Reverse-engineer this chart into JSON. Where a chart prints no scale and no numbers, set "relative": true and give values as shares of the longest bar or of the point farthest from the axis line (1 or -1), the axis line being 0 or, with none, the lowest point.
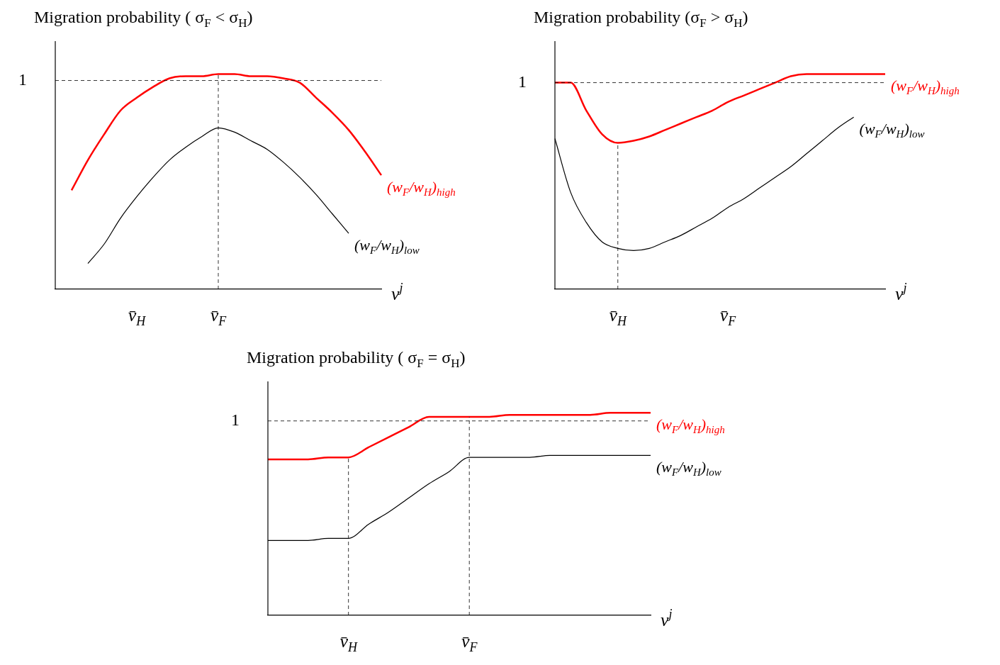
{
  "chart_data": [
    {
      "type": "line",
      "title": "Migration probability ( σ$_{F}$ < σ$_{H}$)",
      "relative": true,
      "xlabel": "v$^{j}$",
      "categories": [
        null,
        null,
        null,
        null,
        null,
        "v̄$_{H}$",
        null,
        null,
        null,
        null,
        "v̄$_{F}$",
        null,
        null,
        null,
        null,
        null,
        null,
        null,
        null,
        null,
        null
      ],
      "series": [
        {
          "name": "(w$_{F}$/w$_{H}$)$_{high}$",
          "color": "#ff0000",
          "values": [
            null,
            0.46,
            0.6,
            0.72,
            0.83,
            0.89,
            0.94,
            0.98,
            0.99,
            0.99,
            1,
            1,
            0.99,
            0.99,
            0.98,
            0.96,
            0.89,
            0.82,
            0.74,
            0.64,
            0.53
          ]
        },
        {
          "name": "(w$_{F}$/w$_{H}$)$_{low}$",
          "color": "#000000",
          "values": [
            null,
            null,
            0.12,
            0.21,
            0.33,
            0.43,
            0.52,
            0.6,
            0.66,
            0.71,
            0.75,
            0.73,
            0.69,
            0.65,
            0.59,
            0.52,
            0.44,
            0.35,
            0.26,
            null,
            null
          ]
        }
      ],
      "ref_lines": [
        {
          "axis": "y",
          "value": 0.97,
          "label": "1",
          "line_style": "dashed"
        },
        {
          "axis": "x",
          "value": "v̄$_{F}$",
          "line_style": "dashed"
        }
      ]
    },
    {
      "type": "line",
      "title": "Migration probability (σ$_{F}$ > σ$_{H}$)",
      "relative": true,
      "xlabel": "v$^{j}$",
      "categories": [
        null,
        null,
        null,
        null,
        "v̄$_{H}$",
        null,
        null,
        null,
        null,
        null,
        null,
        "v̄$_{F}$",
        null,
        null,
        null,
        null,
        null,
        null,
        null,
        null,
        null,
        null
      ],
      "series": [
        {
          "name": "(w$_{F}$/w$_{H}$)$_{high}$",
          "color": "#ff0000",
          "values": [
            0.96,
            0.96,
            0.83,
            0.72,
            0.68,
            0.69,
            0.71,
            0.74,
            0.77,
            0.8,
            0.83,
            0.87,
            0.9,
            0.93,
            0.96,
            0.99,
            1,
            1,
            1,
            1,
            1,
            1
          ]
        },
        {
          "name": "(w$_{F}$/w$_{H}$)$_{low}$",
          "color": "#000000",
          "values": [
            0.7,
            0.45,
            0.31,
            0.22,
            0.19,
            0.18,
            0.19,
            0.22,
            0.25,
            0.29,
            0.33,
            0.38,
            0.42,
            0.47,
            0.52,
            0.57,
            0.63,
            0.69,
            0.75,
            0.8,
            null,
            null
          ]
        }
      ],
      "ref_lines": [
        {
          "axis": "y",
          "value": 0.96,
          "label": "1",
          "line_style": "dashed"
        },
        {
          "axis": "x",
          "value": "v̄$_{H}$",
          "line_style": "dashed"
        }
      ]
    },
    {
      "type": "line",
      "title": "Migration probability ( σ$_{F}$ = σ$_{H}$)",
      "relative": true,
      "xlabel": "v$^{j}$",
      "categories": [
        null,
        null,
        null,
        null,
        "v̄$_{H}$",
        null,
        null,
        null,
        null,
        null,
        "v̄$_{F}$",
        null,
        null,
        null,
        null,
        null,
        null,
        null,
        null,
        null
      ],
      "series": [
        {
          "name": "(w$_{F}$/w$_{H}$)$_{high}$",
          "color": "#ff0000",
          "values": [
            0.77,
            0.77,
            0.77,
            0.78,
            0.78,
            0.83,
            0.88,
            0.93,
            0.98,
            0.98,
            0.98,
            0.98,
            0.99,
            0.99,
            0.99,
            0.99,
            0.99,
            1,
            1,
            1
          ]
        },
        {
          "name": "(w$_{F}$/w$_{H}$)$_{low}$",
          "color": "#000000",
          "values": [
            0.37,
            0.37,
            0.37,
            0.38,
            0.38,
            0.45,
            0.51,
            0.58,
            0.65,
            0.71,
            0.78,
            0.78,
            0.78,
            0.78,
            0.79,
            0.79,
            0.79,
            0.79,
            0.79,
            0.79
          ]
        }
      ],
      "ref_lines": [
        {
          "axis": "y",
          "value": 0.96,
          "label": "1",
          "line_style": "dashed"
        },
        {
          "axis": "x",
          "value": "v̄$_{H}$",
          "line_style": "dashed"
        },
        {
          "axis": "x",
          "value": "v̄$_{F}$",
          "line_style": "dashed"
        }
      ]
    }
  ]
}
